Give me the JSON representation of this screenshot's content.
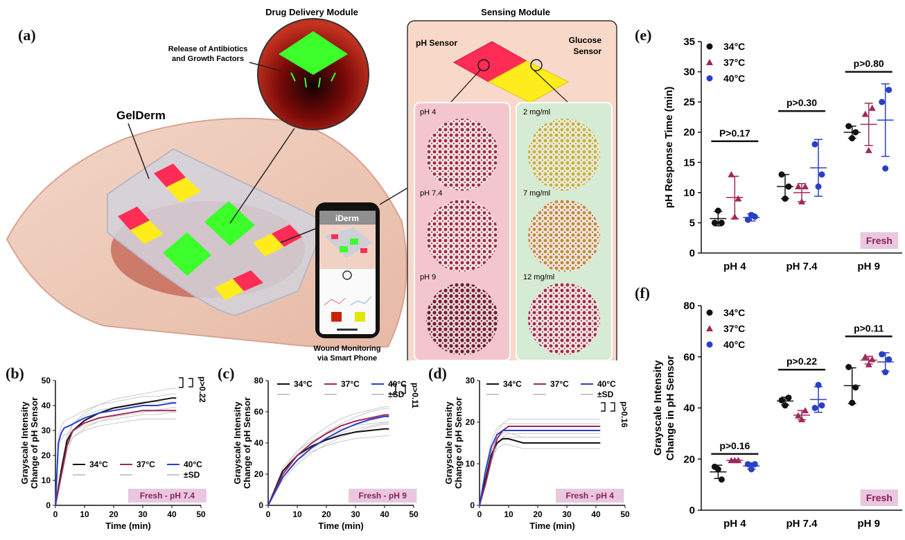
{
  "panel_labels": {
    "a": "(a)",
    "b": "(b)",
    "c": "(c)",
    "d": "(d)",
    "e": "(e)",
    "f": "(f)"
  },
  "illustration": {
    "drug_module_title": "Drug Delivery Module",
    "release_text_1": "Release of Antibiotics",
    "release_text_2": "and Growth Factors",
    "gelderm_label": "GelDerm",
    "phone_app_title": "iDerm",
    "phone_caption_1": "Wound Monitoring",
    "phone_caption_2": "via Smart Phone",
    "sensing_module_title": "Sensing Module",
    "ph_sensor_label": "pH Sensor",
    "glucose_sensor_label_1": "Glucose",
    "glucose_sensor_label_2": "Sensor",
    "ph_samples": [
      "pH 4",
      "pH 7.4",
      "pH 9"
    ],
    "glucose_samples": [
      "2 mg/ml",
      "7 mg/ml",
      "12 mg/ml"
    ]
  },
  "colors": {
    "t34": "#111111",
    "t37": "#a0285a",
    "t40": "#2a3fc8",
    "sd": "#c8c8c8",
    "fresh_bg": "#e9c8df",
    "fresh_text": "#8b1f5a"
  },
  "chart_data": [
    {
      "id": "b",
      "type": "line",
      "xlabel": "Time (min)",
      "ylabel_1": "Grayscale Intensity",
      "ylabel_2": "Change of pH Sensor",
      "xlim": [
        0,
        50
      ],
      "ylim": [
        0,
        50
      ],
      "xticks": [
        "0",
        "10",
        "20",
        "30",
        "40",
        "50"
      ],
      "yticks": [
        "0",
        "10",
        "20",
        "30",
        "40",
        "50"
      ],
      "legend": [
        "34°C",
        "37°C",
        "40°C",
        "±SD"
      ],
      "legend_position": "bottom-center",
      "tag": "Fresh - pH 7.4",
      "significance": "p>0.22",
      "series": [
        {
          "name": "34°C",
          "x": [
            0,
            2,
            4,
            6,
            10,
            15,
            20,
            25,
            30,
            35,
            40,
            41.5
          ],
          "y": [
            0,
            14,
            26,
            30,
            34,
            37,
            39,
            40,
            41,
            42,
            43,
            43
          ]
        },
        {
          "name": "37°C",
          "x": [
            0,
            2,
            4,
            6,
            10,
            15,
            20,
            25,
            30,
            35,
            40,
            41.5
          ],
          "y": [
            0,
            12,
            24,
            30,
            33,
            35,
            36,
            37,
            38,
            38,
            38,
            38
          ]
        },
        {
          "name": "40°C",
          "x": [
            0,
            1,
            2,
            3,
            5,
            10,
            15,
            20,
            25,
            30,
            35,
            40,
            41.5
          ],
          "y": [
            0,
            25,
            29,
            31,
            32,
            35,
            37,
            38,
            39,
            40,
            40,
            41,
            41
          ]
        }
      ]
    },
    {
      "id": "c",
      "type": "line",
      "xlabel": "Time (min)",
      "ylabel_1": "Grayscale Intensity",
      "ylabel_2": "Change of pH Sensor",
      "xlim": [
        0,
        50
      ],
      "ylim": [
        0,
        80
      ],
      "xticks": [
        "0",
        "10",
        "20",
        "30",
        "40",
        "50"
      ],
      "yticks": [
        "0",
        "20",
        "40",
        "60",
        "80"
      ],
      "legend": [
        "34°C",
        "37°C",
        "40°C",
        "±SD"
      ],
      "legend_position": "top-center",
      "tag": "Fresh - pH 9",
      "significance": "p>0.11",
      "series": [
        {
          "name": "34°C",
          "x": [
            0,
            5,
            10,
            15,
            20,
            25,
            30,
            35,
            40,
            41.5
          ],
          "y": [
            0,
            22,
            32,
            38,
            42,
            45,
            47,
            48,
            49,
            49
          ]
        },
        {
          "name": "37°C",
          "x": [
            0,
            5,
            10,
            15,
            20,
            25,
            30,
            35,
            40,
            41.5
          ],
          "y": [
            0,
            20,
            32,
            40,
            46,
            51,
            54,
            56,
            58,
            58
          ]
        },
        {
          "name": "40°C",
          "x": [
            0,
            5,
            10,
            15,
            20,
            25,
            30,
            35,
            40,
            41.5
          ],
          "y": [
            0,
            18,
            29,
            37,
            43,
            48,
            52,
            55,
            57,
            57
          ]
        }
      ]
    },
    {
      "id": "d",
      "type": "line",
      "xlabel": "Time (min)",
      "ylabel_1": "Grayscale Intensity",
      "ylabel_2": "Change of pH Sensor",
      "xlim": [
        0,
        50
      ],
      "ylim": [
        0,
        30
      ],
      "xticks": [
        "0",
        "10",
        "20",
        "30",
        "40",
        "50"
      ],
      "yticks": [
        "0",
        "10",
        "20",
        "30"
      ],
      "legend": [
        "34°C",
        "37°C",
        "40°C",
        "±SD"
      ],
      "legend_position": "top-center",
      "tag": "Fresh - pH 4",
      "significance": "p>0.16",
      "series": [
        {
          "name": "34°C",
          "x": [
            0,
            2,
            4,
            6,
            8,
            10,
            15,
            20,
            25,
            30,
            35,
            40,
            41.5
          ],
          "y": [
            0,
            6,
            12,
            15,
            16,
            16,
            15,
            15,
            15,
            15,
            15,
            15,
            15
          ]
        },
        {
          "name": "37°C",
          "x": [
            0,
            2,
            4,
            6,
            8,
            10,
            15,
            20,
            25,
            30,
            35,
            40,
            41.5
          ],
          "y": [
            0,
            5,
            11,
            16,
            18,
            19,
            19,
            19,
            19,
            19,
            19,
            19,
            19
          ]
        },
        {
          "name": "40°C",
          "x": [
            0,
            2,
            4,
            6,
            8,
            10,
            15,
            20,
            25,
            30,
            35,
            40,
            41.5
          ],
          "y": [
            0,
            8,
            14,
            17,
            18,
            18,
            18,
            18,
            18,
            18,
            18,
            18,
            18
          ]
        }
      ]
    },
    {
      "id": "e",
      "type": "scatter",
      "ylabel": "pH Response Time (min)",
      "categories": [
        "pH 4",
        "pH 7.4",
        "pH 9"
      ],
      "ylim": [
        0,
        35
      ],
      "yticks": [
        "0",
        "5",
        "10",
        "15",
        "20",
        "25",
        "30",
        "35"
      ],
      "legend": [
        "34°C",
        "37°C",
        "40°C"
      ],
      "legend_position": "top-left",
      "tag": "Fresh",
      "significance": [
        "P>0.17",
        "p>0.30",
        "p>0.80"
      ],
      "series": [
        {
          "name": "34°C",
          "points": [
            [
              5,
              7,
              5
            ],
            [
              13,
              9,
              11
            ],
            [
              21,
              19,
              20
            ]
          ],
          "mean": [
            5.7,
            11,
            20
          ],
          "sd": [
            1.2,
            2,
            1
          ]
        },
        {
          "name": "37°C",
          "points": [
            [
              13,
              6,
              9
            ],
            [
              11,
              8.5,
              11
            ],
            [
              23,
              17,
              24
            ]
          ],
          "mean": [
            9.2,
            10,
            21.3
          ],
          "sd": [
            3.5,
            1.5,
            3.5
          ]
        },
        {
          "name": "40°C",
          "points": [
            [
              5.5,
              6.3,
              6
            ],
            [
              18,
              11,
              13
            ],
            [
              25,
              14,
              27
            ]
          ],
          "mean": [
            5.9,
            14.1,
            22
          ],
          "sd": [
            0.6,
            4.7,
            6
          ]
        }
      ]
    },
    {
      "id": "f",
      "type": "scatter",
      "ylabel_1": "Grayscale Intensity",
      "ylabel_2": "Change in pH Sensor",
      "categories": [
        "pH 4",
        "pH 7.4",
        "pH 9"
      ],
      "ylim": [
        0,
        80
      ],
      "yticks": [
        "0",
        "20",
        "40",
        "60",
        "80"
      ],
      "legend": [
        "34°C",
        "37°C",
        "40°C"
      ],
      "legend_position": "top-left",
      "tag": "Fresh",
      "significance": [
        "p>0.16",
        "p>0.22",
        "p>0.11"
      ],
      "series": [
        {
          "name": "34°C",
          "points": [
            [
              17,
              16,
              12
            ],
            [
              43,
              41,
              44
            ],
            [
              56,
              42,
              48
            ]
          ],
          "mean": [
            15,
            42.7,
            48.7
          ],
          "sd": [
            2.6,
            1.5,
            7
          ]
        },
        {
          "name": "37°C",
          "points": [
            [
              19.5,
              19.5,
              19.5
            ],
            [
              37,
              35.5,
              39
            ],
            [
              60,
              57,
              59
            ]
          ],
          "mean": [
            19.5,
            37.2,
            58.7
          ],
          "sd": [
            0.2,
            1.8,
            1.5
          ]
        },
        {
          "name": "40°C",
          "points": [
            [
              18,
              16,
              18
            ],
            [
              40,
              49,
              41
            ],
            [
              61,
              54,
              59
            ]
          ],
          "mean": [
            17.3,
            43.3,
            58
          ],
          "sd": [
            1.2,
            5,
            3.6
          ]
        }
      ]
    }
  ]
}
